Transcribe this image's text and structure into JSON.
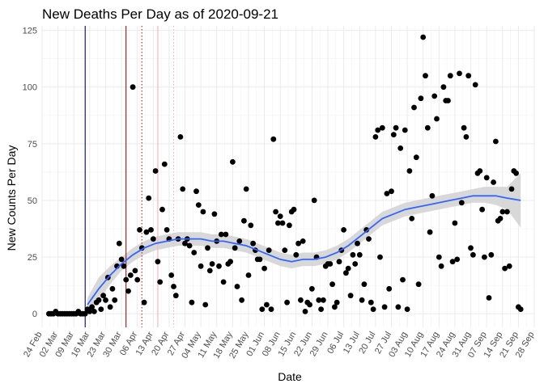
{
  "chart_data": {
    "type": "scatter",
    "title": "New Deaths Per Day as of 2020-09-21",
    "xlabel": "Date",
    "ylabel": "New Counts Per Day",
    "x_origin": "2020-02-24",
    "x_range_days": [
      0,
      217
    ],
    "ylim": [
      -6,
      127
    ],
    "y_ticks": [
      0,
      25,
      50,
      75,
      100,
      125
    ],
    "x_ticks": [
      {
        "day": 0,
        "label": "24 Feb"
      },
      {
        "day": 7,
        "label": "02 Mar"
      },
      {
        "day": 14,
        "label": "09 Mar"
      },
      {
        "day": 21,
        "label": "16 Mar"
      },
      {
        "day": 28,
        "label": "23 Mar"
      },
      {
        "day": 35,
        "label": "30 Mar"
      },
      {
        "day": 42,
        "label": "06 Apr"
      },
      {
        "day": 49,
        "label": "13 Apr"
      },
      {
        "day": 56,
        "label": "20 Apr"
      },
      {
        "day": 63,
        "label": "27 Apr"
      },
      {
        "day": 70,
        "label": "04 May"
      },
      {
        "day": 77,
        "label": "11 May"
      },
      {
        "day": 84,
        "label": "18 May"
      },
      {
        "day": 91,
        "label": "25 May"
      },
      {
        "day": 98,
        "label": "01 Jun"
      },
      {
        "day": 105,
        "label": "08 Jun"
      },
      {
        "day": 112,
        "label": "15 Jun"
      },
      {
        "day": 119,
        "label": "22 Jun"
      },
      {
        "day": 126,
        "label": "29 Jun"
      },
      {
        "day": 133,
        "label": "06 Jul"
      },
      {
        "day": 140,
        "label": "13 Jul"
      },
      {
        "day": 147,
        "label": "20 Jul"
      },
      {
        "day": 154,
        "label": "27 Jul"
      },
      {
        "day": 161,
        "label": "03 Aug"
      },
      {
        "day": 168,
        "label": "10 Aug"
      },
      {
        "day": 175,
        "label": "17 Aug"
      },
      {
        "day": 182,
        "label": "24 Aug"
      },
      {
        "day": 189,
        "label": "31 Aug"
      },
      {
        "day": 196,
        "label": "07 Sep"
      },
      {
        "day": 203,
        "label": "14 Sep"
      },
      {
        "day": 210,
        "label": "21 Sep"
      },
      {
        "day": 217,
        "label": "28 Sep"
      }
    ],
    "grid": true,
    "legend": "none",
    "vlines": [
      {
        "day": 19,
        "color": "#191970",
        "style": "solid"
      },
      {
        "day": 37,
        "color": "#b22222",
        "style": "solid"
      },
      {
        "day": 44,
        "color": "#c0392b",
        "style": "dotted"
      },
      {
        "day": 51,
        "color": "#f4b6c2",
        "style": "solid"
      },
      {
        "day": 58,
        "color": "#f4b6c2",
        "style": "dotted"
      }
    ],
    "series": [
      {
        "type": "points",
        "color": "#000000",
        "points": [
          [
            3,
            0
          ],
          [
            4,
            0
          ],
          [
            5,
            0
          ],
          [
            6,
            1
          ],
          [
            7,
            0
          ],
          [
            8,
            0
          ],
          [
            9,
            0
          ],
          [
            10,
            0
          ],
          [
            11,
            0
          ],
          [
            12,
            0
          ],
          [
            13,
            0
          ],
          [
            14,
            0
          ],
          [
            15,
            0
          ],
          [
            16,
            1
          ],
          [
            17,
            0
          ],
          [
            18,
            0
          ],
          [
            19,
            0
          ],
          [
            20,
            2
          ],
          [
            21,
            1
          ],
          [
            22,
            3
          ],
          [
            23,
            1
          ],
          [
            24,
            5
          ],
          [
            25,
            6
          ],
          [
            26,
            2
          ],
          [
            27,
            8
          ],
          [
            28,
            6
          ],
          [
            29,
            16
          ],
          [
            30,
            3
          ],
          [
            31,
            11
          ],
          [
            32,
            6
          ],
          [
            33,
            21
          ],
          [
            34,
            31
          ],
          [
            35,
            24
          ],
          [
            36,
            21
          ],
          [
            37,
            15
          ],
          [
            38,
            10
          ],
          [
            39,
            17
          ],
          [
            40,
            100
          ],
          [
            41,
            19
          ],
          [
            42,
            15
          ],
          [
            43,
            37
          ],
          [
            44,
            29
          ],
          [
            45,
            5
          ],
          [
            46,
            36
          ],
          [
            47,
            51
          ],
          [
            48,
            37
          ],
          [
            49,
            33
          ],
          [
            50,
            63
          ],
          [
            51,
            23
          ],
          [
            52,
            14
          ],
          [
            53,
            46
          ],
          [
            54,
            66
          ],
          [
            55,
            37
          ],
          [
            56,
            33
          ],
          [
            57,
            17
          ],
          [
            58,
            12
          ],
          [
            59,
            8
          ],
          [
            60,
            33
          ],
          [
            61,
            78
          ],
          [
            62,
            55
          ],
          [
            63,
            31
          ],
          [
            64,
            33
          ],
          [
            65,
            30
          ],
          [
            66,
            5
          ],
          [
            67,
            27
          ],
          [
            68,
            54
          ],
          [
            69,
            48
          ],
          [
            70,
            21
          ],
          [
            71,
            45
          ],
          [
            72,
            4
          ],
          [
            73,
            29
          ],
          [
            74,
            19
          ],
          [
            75,
            22
          ],
          [
            76,
            44
          ],
          [
            77,
            32
          ],
          [
            78,
            21
          ],
          [
            79,
            35
          ],
          [
            80,
            14
          ],
          [
            81,
            35
          ],
          [
            82,
            22
          ],
          [
            83,
            23
          ],
          [
            84,
            67
          ],
          [
            85,
            29
          ],
          [
            86,
            12
          ],
          [
            87,
            32
          ],
          [
            88,
            6
          ],
          [
            89,
            41
          ],
          [
            90,
            55
          ],
          [
            91,
            17
          ],
          [
            92,
            39
          ],
          [
            93,
            31
          ],
          [
            94,
            28
          ],
          [
            95,
            24
          ],
          [
            96,
            24
          ],
          [
            97,
            2
          ],
          [
            98,
            20
          ],
          [
            99,
            4
          ],
          [
            100,
            28
          ],
          [
            101,
            2
          ],
          [
            102,
            77
          ],
          [
            103,
            45
          ],
          [
            104,
            40
          ],
          [
            105,
            43
          ],
          [
            106,
            40
          ],
          [
            107,
            28
          ],
          [
            108,
            5
          ],
          [
            109,
            39
          ],
          [
            110,
            45
          ],
          [
            111,
            46
          ],
          [
            112,
            26
          ],
          [
            113,
            31
          ],
          [
            114,
            6
          ],
          [
            115,
            32
          ],
          [
            116,
            1
          ],
          [
            117,
            5
          ],
          [
            118,
            4
          ],
          [
            119,
            11
          ],
          [
            120,
            50
          ],
          [
            121,
            25
          ],
          [
            122,
            6
          ],
          [
            123,
            2
          ],
          [
            124,
            6
          ],
          [
            125,
            21
          ],
          [
            126,
            22
          ],
          [
            127,
            22
          ],
          [
            128,
            13
          ],
          [
            129,
            3
          ],
          [
            130,
            5
          ],
          [
            131,
            23
          ],
          [
            132,
            28
          ],
          [
            133,
            37
          ],
          [
            134,
            18
          ],
          [
            135,
            20
          ],
          [
            136,
            8
          ],
          [
            137,
            26
          ],
          [
            138,
            22
          ],
          [
            139,
            31
          ],
          [
            140,
            26
          ],
          [
            141,
            6
          ],
          [
            142,
            13
          ],
          [
            143,
            37
          ],
          [
            144,
            33
          ],
          [
            145,
            5
          ],
          [
            146,
            2
          ],
          [
            147,
            78
          ],
          [
            148,
            81
          ],
          [
            149,
            25
          ],
          [
            150,
            82
          ],
          [
            151,
            3
          ],
          [
            152,
            53
          ],
          [
            153,
            11
          ],
          [
            154,
            54
          ],
          [
            155,
            79
          ],
          [
            156,
            82
          ],
          [
            157,
            3
          ],
          [
            158,
            73
          ],
          [
            159,
            15
          ],
          [
            160,
            81
          ],
          [
            161,
            2
          ],
          [
            162,
            63
          ],
          [
            163,
            42
          ],
          [
            164,
            91
          ],
          [
            165,
            69
          ],
          [
            166,
            13
          ],
          [
            167,
            95
          ],
          [
            168,
            122
          ],
          [
            169,
            105
          ],
          [
            170,
            82
          ],
          [
            171,
            36
          ],
          [
            172,
            52
          ],
          [
            173,
            96
          ],
          [
            174,
            86
          ],
          [
            175,
            25
          ],
          [
            176,
            21
          ],
          [
            177,
            100
          ],
          [
            178,
            94
          ],
          [
            179,
            94
          ],
          [
            180,
            105
          ],
          [
            181,
            23
          ],
          [
            182,
            40
          ],
          [
            183,
            24
          ],
          [
            184,
            106
          ],
          [
            185,
            49
          ],
          [
            186,
            82
          ],
          [
            187,
            78
          ],
          [
            188,
            105
          ],
          [
            189,
            29
          ],
          [
            190,
            26
          ],
          [
            191,
            101
          ],
          [
            192,
            62
          ],
          [
            193,
            63
          ],
          [
            194,
            46
          ],
          [
            195,
            25
          ],
          [
            196,
            60
          ],
          [
            197,
            7
          ],
          [
            198,
            26
          ],
          [
            199,
            58
          ],
          [
            200,
            76
          ],
          [
            201,
            41
          ],
          [
            202,
            42
          ],
          [
            203,
            45
          ],
          [
            204,
            20
          ],
          [
            205,
            45
          ],
          [
            206,
            21
          ],
          [
            207,
            55
          ],
          [
            208,
            63
          ],
          [
            209,
            62
          ],
          [
            210,
            3
          ],
          [
            211,
            2
          ]
        ]
      },
      {
        "type": "smooth",
        "color": "#3366ff",
        "band_color": "#d4d4d4",
        "points": [
          [
            20,
            4,
            1,
            7
          ],
          [
            25,
            11,
            6,
            16
          ],
          [
            30,
            17,
            13,
            21
          ],
          [
            35,
            22,
            19,
            25
          ],
          [
            40,
            26,
            23,
            29
          ],
          [
            45,
            29,
            26,
            32
          ],
          [
            50,
            31,
            28,
            34
          ],
          [
            55,
            32,
            29,
            35
          ],
          [
            60,
            33,
            30,
            36
          ],
          [
            65,
            33,
            30,
            36
          ],
          [
            70,
            33,
            30,
            36
          ],
          [
            75,
            32,
            29,
            35
          ],
          [
            80,
            32,
            29,
            35
          ],
          [
            85,
            31,
            28,
            34
          ],
          [
            90,
            30,
            27,
            33
          ],
          [
            95,
            28,
            25,
            31
          ],
          [
            100,
            26,
            23,
            29
          ],
          [
            105,
            24,
            21,
            27
          ],
          [
            110,
            23,
            20,
            26
          ],
          [
            115,
            24,
            21,
            27
          ],
          [
            120,
            24,
            21,
            27
          ],
          [
            125,
            25,
            22,
            28
          ],
          [
            130,
            27,
            24,
            30
          ],
          [
            135,
            30,
            27,
            33
          ],
          [
            140,
            34,
            31,
            37
          ],
          [
            145,
            38,
            35,
            41
          ],
          [
            150,
            42,
            39,
            45
          ],
          [
            155,
            44,
            41,
            47
          ],
          [
            160,
            46,
            43,
            49
          ],
          [
            165,
            47,
            44,
            50
          ],
          [
            170,
            48,
            45,
            51
          ],
          [
            175,
            49,
            46,
            52
          ],
          [
            180,
            50,
            47,
            53
          ],
          [
            185,
            51,
            48,
            54
          ],
          [
            190,
            52,
            49,
            55
          ],
          [
            195,
            52,
            49,
            56
          ],
          [
            200,
            52,
            48,
            56
          ],
          [
            205,
            51,
            46,
            56
          ],
          [
            211,
            50,
            38,
            62
          ]
        ]
      }
    ]
  }
}
